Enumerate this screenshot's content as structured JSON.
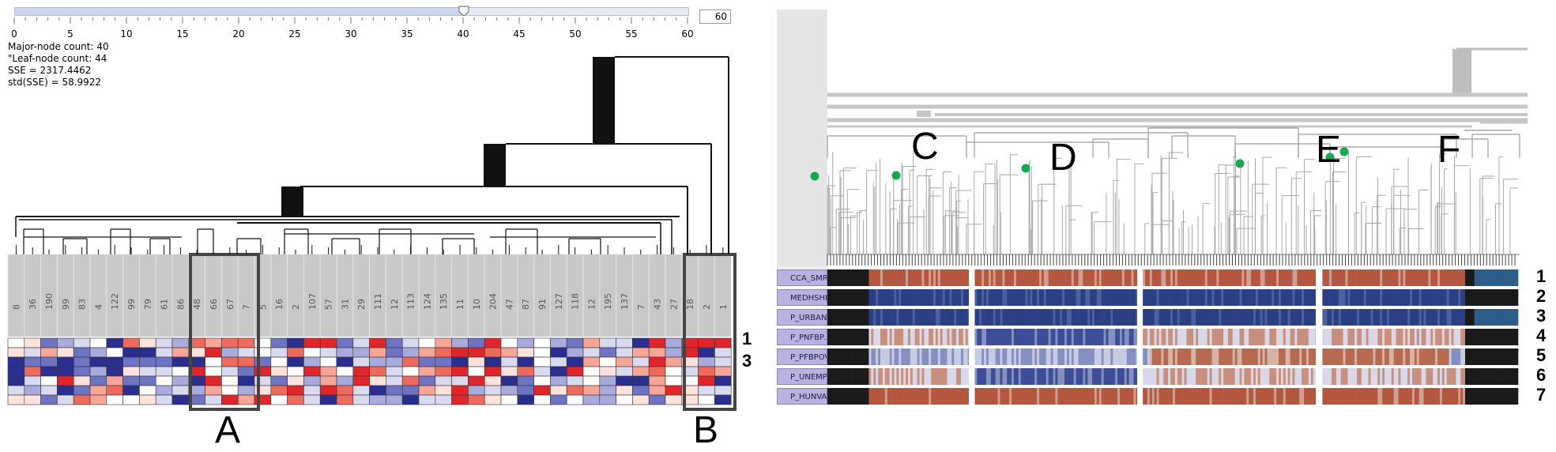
{
  "left_panel": {
    "slider": {
      "min": 0,
      "max": 60,
      "value": 40,
      "tick_labels": [
        "0",
        "5",
        "10",
        "15",
        "20",
        "25",
        "30",
        "35",
        "40",
        "45",
        "50",
        "55",
        "60"
      ],
      "spin_value": "60"
    },
    "stats": [
      "Major-node count: 40",
      "\"Leaf-node count: 44",
      "SSE = 2317.4462",
      "std(SSE) = 58.9922"
    ],
    "leaf_labels": [
      "8",
      "36",
      "190",
      "99",
      "83",
      "4",
      "122",
      "99",
      "79",
      "61",
      "86",
      "48",
      "66",
      "67",
      "7",
      "5",
      "16",
      "2",
      "107",
      "57",
      "31",
      "29",
      "111",
      "12",
      "113",
      "124",
      "135",
      "11",
      "10",
      "204",
      "47",
      "87",
      "91",
      "127",
      "118",
      "12",
      "195",
      "137",
      "7",
      "43",
      "27",
      "18",
      "2",
      "1"
    ],
    "row_numbers": [
      "1",
      "3"
    ],
    "box_labels": {
      "a": "A",
      "b": "B"
    }
  },
  "right_panel": {
    "cluster_labels": [
      "C",
      "D",
      "E",
      "F"
    ],
    "variables": [
      "CCA_SMR",
      "MEDHSHI...",
      "P_URBAN",
      "P_PNFBP...",
      "P_PFBPOV",
      "P_UNEMP",
      "P_HUNVA"
    ],
    "row_numbers": [
      "1",
      "2",
      "3",
      "4",
      "5",
      "6",
      "7"
    ]
  },
  "colors": {
    "red": "#e0262a",
    "blue": "#2a2f8f",
    "right_red": "#b5573f",
    "right_blue": "#2b3f86",
    "node_green": "#17a654",
    "label_purple": "#b9b2e0"
  }
}
